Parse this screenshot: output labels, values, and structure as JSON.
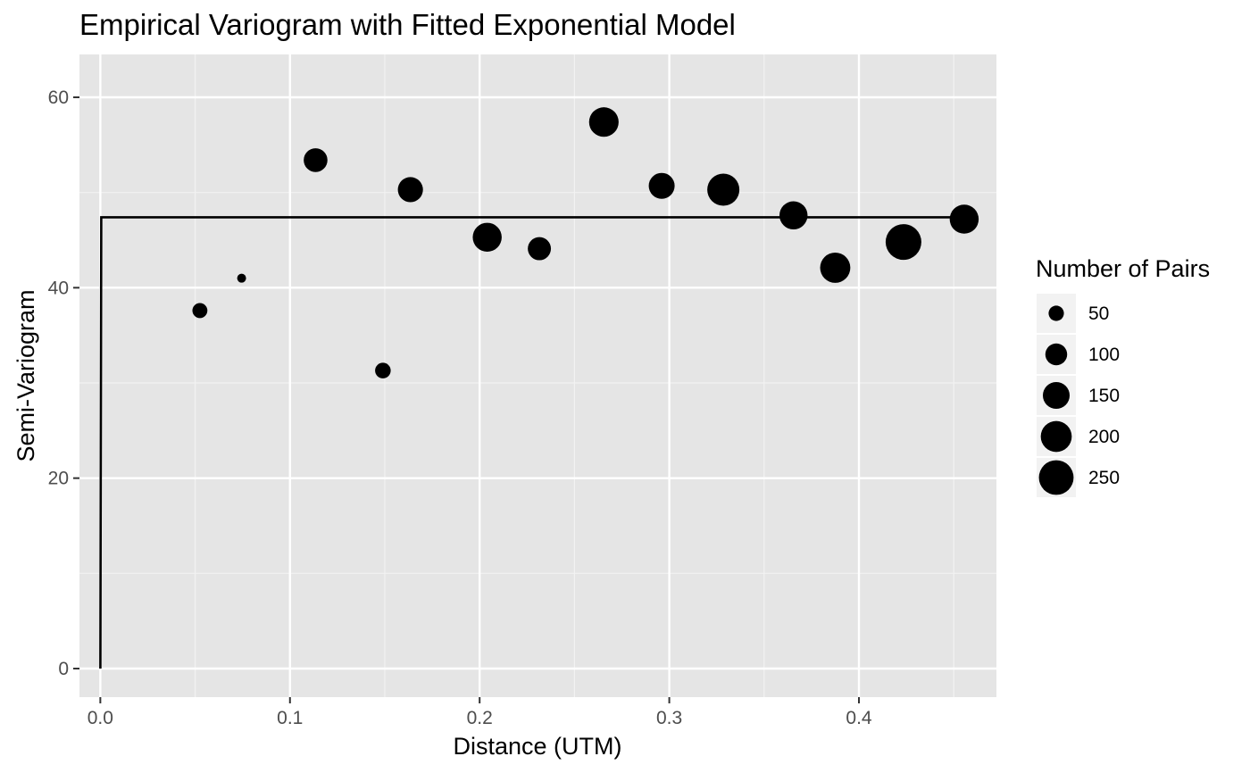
{
  "chart_data": {
    "type": "scatter",
    "title": "Empirical Variogram with Fitted Exponential Model",
    "xlabel": "Distance (UTM)",
    "ylabel": "Semi-Variogram",
    "xlim": [
      -0.011,
      0.4725
    ],
    "ylim": [
      -3.0,
      64.5
    ],
    "x_ticks": [
      0.0,
      0.1,
      0.2,
      0.3,
      0.4
    ],
    "x_tick_labels": [
      "0.0",
      "0.1",
      "0.2",
      "0.3",
      "0.4"
    ],
    "y_ticks": [
      0,
      20,
      40,
      60
    ],
    "y_tick_labels": [
      "0",
      "20",
      "40",
      "60"
    ],
    "grid": true,
    "background": "#e5e5e5",
    "point_color": "#000000",
    "points": [
      {
        "x": 0.0525,
        "y": 37.6,
        "np": 48
      },
      {
        "x": 0.0745,
        "y": 41.0,
        "np": 18
      },
      {
        "x": 0.1135,
        "y": 53.4,
        "np": 118
      },
      {
        "x": 0.149,
        "y": 31.3,
        "np": 52
      },
      {
        "x": 0.1635,
        "y": 50.3,
        "np": 132
      },
      {
        "x": 0.204,
        "y": 45.3,
        "np": 175
      },
      {
        "x": 0.2315,
        "y": 44.1,
        "np": 112
      },
      {
        "x": 0.2655,
        "y": 57.4,
        "np": 182
      },
      {
        "x": 0.296,
        "y": 50.7,
        "np": 140
      },
      {
        "x": 0.3285,
        "y": 50.3,
        "np": 215
      },
      {
        "x": 0.3655,
        "y": 47.6,
        "np": 165
      },
      {
        "x": 0.3875,
        "y": 42.1,
        "np": 190
      },
      {
        "x": 0.4235,
        "y": 44.8,
        "np": 265
      },
      {
        "x": 0.4555,
        "y": 47.2,
        "np": 175
      }
    ],
    "fitted_line": {
      "model": "exponential",
      "x": [
        0.0,
        0.0005,
        0.001,
        0.455
      ],
      "y": [
        0.0,
        47.4,
        47.4,
        47.4
      ]
    },
    "size_legend": {
      "title": "Number of Pairs",
      "breaks": [
        50,
        100,
        150,
        200,
        250
      ],
      "labels": [
        "50",
        "100",
        "150",
        "200",
        "250"
      ],
      "placement": "right"
    }
  }
}
